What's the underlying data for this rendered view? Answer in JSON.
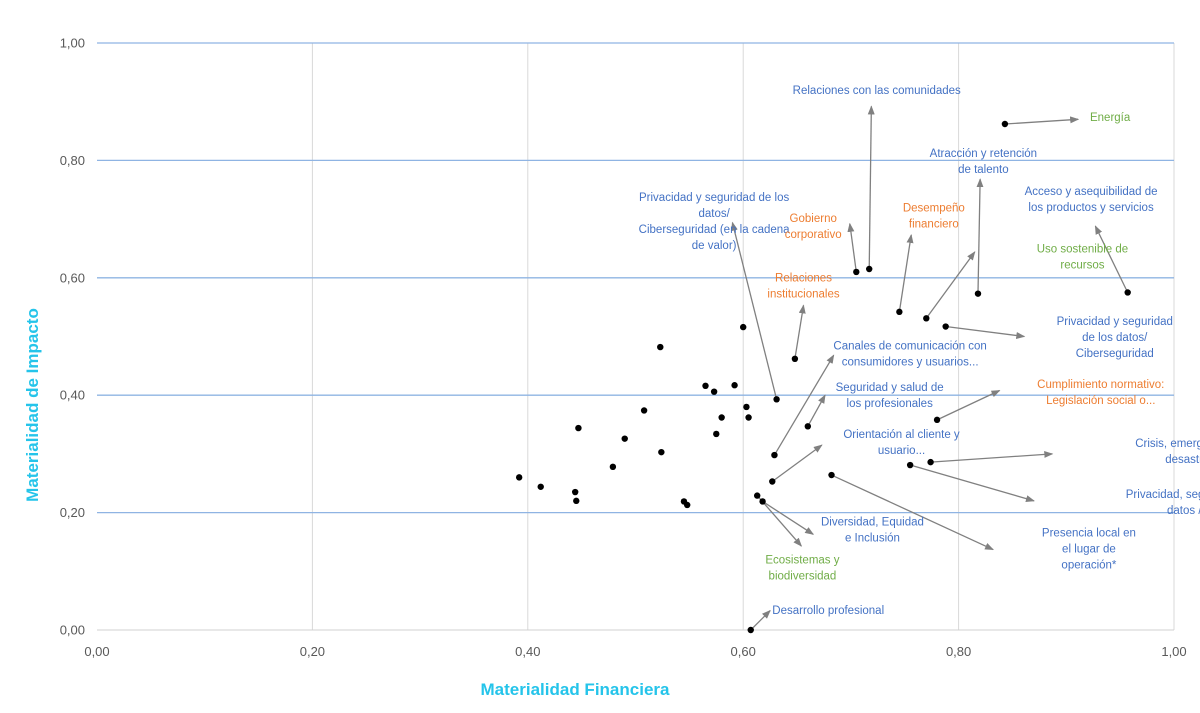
{
  "chart_data": {
    "type": "scatter",
    "title": "",
    "xlabel": "Materialidad Financiera",
    "ylabel": "Materialidad de Impacto",
    "xlim": [
      0,
      1
    ],
    "ylim": [
      0,
      1
    ],
    "x_ticks": [
      "0,00",
      "0,20",
      "0,40",
      "0,60",
      "0,80",
      "1,00"
    ],
    "y_ticks": [
      "0,00",
      "0,20",
      "0,40",
      "0,60",
      "0,80",
      "1,00"
    ],
    "grid": "horizontal lines blue, vertical lines grey",
    "colors": {
      "point": "#000000",
      "h_grid": "#8fb4e3",
      "v_grid": "#d9d9d9",
      "axis_title": "#25c4ea",
      "arrow": "#808080",
      "label_blue": "#4472c4",
      "label_orange": "#ed7d31",
      "label_green": "#70ad47"
    },
    "points": [
      {
        "x": 0.392,
        "y": 0.26
      },
      {
        "x": 0.412,
        "y": 0.244
      },
      {
        "x": 0.444,
        "y": 0.235
      },
      {
        "x": 0.445,
        "y": 0.22
      },
      {
        "x": 0.447,
        "y": 0.344
      },
      {
        "x": 0.479,
        "y": 0.278
      },
      {
        "x": 0.49,
        "y": 0.326
      },
      {
        "x": 0.508,
        "y": 0.374
      },
      {
        "x": 0.523,
        "y": 0.482
      },
      {
        "x": 0.524,
        "y": 0.303
      },
      {
        "x": 0.545,
        "y": 0.219
      },
      {
        "x": 0.548,
        "y": 0.213
      },
      {
        "x": 0.565,
        "y": 0.416
      },
      {
        "x": 0.573,
        "y": 0.406
      },
      {
        "x": 0.575,
        "y": 0.334
      },
      {
        "x": 0.58,
        "y": 0.362
      },
      {
        "x": 0.592,
        "y": 0.417
      },
      {
        "x": 0.6,
        "y": 0.516
      },
      {
        "x": 0.603,
        "y": 0.38
      },
      {
        "x": 0.605,
        "y": 0.362
      },
      {
        "x": 0.607,
        "y": 0.0
      },
      {
        "x": 0.613,
        "y": 0.229
      },
      {
        "x": 0.618,
        "y": 0.219
      },
      {
        "x": 0.627,
        "y": 0.253
      },
      {
        "x": 0.629,
        "y": 0.298
      },
      {
        "x": 0.631,
        "y": 0.393
      },
      {
        "x": 0.648,
        "y": 0.462
      },
      {
        "x": 0.66,
        "y": 0.347
      },
      {
        "x": 0.682,
        "y": 0.264
      },
      {
        "x": 0.705,
        "y": 0.61
      },
      {
        "x": 0.717,
        "y": 0.615
      },
      {
        "x": 0.745,
        "y": 0.542
      },
      {
        "x": 0.755,
        "y": 0.281
      },
      {
        "x": 0.77,
        "y": 0.531
      },
      {
        "x": 0.774,
        "y": 0.286
      },
      {
        "x": 0.78,
        "y": 0.358
      },
      {
        "x": 0.788,
        "y": 0.517
      },
      {
        "x": 0.818,
        "y": 0.573
      },
      {
        "x": 0.843,
        "y": 0.862
      },
      {
        "x": 0.957,
        "y": 0.575
      }
    ],
    "annotations": [
      {
        "lines": [
          "Relaciones con las comunidades"
        ],
        "color": "blue",
        "anchor": "middle",
        "tx": 0.724,
        "ty": 0.913,
        "from": [
          0.717,
          0.615
        ],
        "to": [
          0.719,
          0.892
        ]
      },
      {
        "lines": [
          "Energía"
        ],
        "color": "green",
        "anchor": "start",
        "tx": 0.922,
        "ty": 0.867,
        "from": [
          0.843,
          0.862
        ],
        "to": [
          0.911,
          0.87
        ]
      },
      {
        "lines": [
          "Atracción y retención",
          "de talento"
        ],
        "color": "blue",
        "anchor": "middle",
        "tx": 0.823,
        "ty": 0.806,
        "from": [
          0.818,
          0.573
        ],
        "to": [
          0.82,
          0.768
        ]
      },
      {
        "lines": [
          "Acceso y asequibilidad de",
          "los productos y servicios"
        ],
        "color": "blue",
        "anchor": "middle",
        "tx": 0.923,
        "ty": 0.741,
        "from": [
          0.957,
          0.575
        ],
        "to": [
          0.927,
          0.688
        ]
      },
      {
        "lines": [
          "Privacidad y seguridad de los",
          "datos/",
          "Ciberseguridad (en la cadena",
          "de valor)"
        ],
        "color": "blue",
        "anchor": "middle",
        "tx": 0.573,
        "ty": 0.731,
        "from": [
          0.631,
          0.393
        ],
        "to": [
          0.59,
          0.694
        ]
      },
      {
        "lines": [
          "Gobierno",
          "corporativo"
        ],
        "color": "orange",
        "anchor": "middle",
        "tx": 0.665,
        "ty": 0.695,
        "from": [
          0.705,
          0.61
        ],
        "to": [
          0.699,
          0.692
        ]
      },
      {
        "lines": [
          "Desempeño",
          "financiero"
        ],
        "color": "orange",
        "anchor": "middle",
        "tx": 0.777,
        "ty": 0.713,
        "from": [
          0.745,
          0.542
        ],
        "to": [
          0.756,
          0.673
        ]
      },
      {
        "lines": [
          "Uso sostenible de",
          "recursos"
        ],
        "color": "green",
        "anchor": "middle",
        "tx": 0.915,
        "ty": 0.643,
        "from": [
          0.77,
          0.531
        ],
        "to": [
          0.815,
          0.644
        ]
      },
      {
        "lines": [
          "Relaciones",
          "institucionales"
        ],
        "color": "orange",
        "anchor": "middle",
        "tx": 0.656,
        "ty": 0.594,
        "from": [
          0.648,
          0.462
        ],
        "to": [
          0.656,
          0.553
        ]
      },
      {
        "lines": [
          "Privacidad y seguridad",
          "de los datos/",
          "Ciberseguridad"
        ],
        "color": "blue",
        "anchor": "middle",
        "tx": 0.945,
        "ty": 0.52,
        "from": [
          0.788,
          0.517
        ],
        "to": [
          0.861,
          0.5
        ]
      },
      {
        "lines": [
          "Canales de comunicación con",
          "consumidores y usuarios..."
        ],
        "color": "blue",
        "anchor": "middle",
        "tx": 0.755,
        "ty": 0.478,
        "from": [
          0.629,
          0.298
        ],
        "to": [
          0.684,
          0.468
        ]
      },
      {
        "lines": [
          "Cumplimiento normativo:",
          "Legislación social o..."
        ],
        "color": "orange",
        "anchor": "middle",
        "tx": 0.932,
        "ty": 0.412,
        "from": [
          0.78,
          0.358
        ],
        "to": [
          0.838,
          0.408
        ]
      },
      {
        "lines": [
          "Seguridad y salud de",
          "los profesionales"
        ],
        "color": "blue",
        "anchor": "middle",
        "tx": 0.736,
        "ty": 0.407,
        "from": [
          0.66,
          0.347
        ],
        "to": [
          0.676,
          0.4
        ]
      },
      {
        "lines": [
          "Orientación al cliente y",
          "usuario..."
        ],
        "color": "blue",
        "anchor": "middle",
        "tx": 0.747,
        "ty": 0.327,
        "from": [
          0.627,
          0.253
        ],
        "to": [
          0.673,
          0.315
        ]
      },
      {
        "lines": [
          "Crisis, emergencias y",
          "desastres"
        ],
        "color": "blue",
        "anchor": "middle",
        "tx": 1.015,
        "ty": 0.312,
        "from": [
          0.774,
          0.286
        ],
        "to": [
          0.887,
          0.3
        ]
      },
      {
        "lines": [
          "Privacidad, seguridad de",
          "datos /..."
        ],
        "color": "blue",
        "anchor": "middle",
        "tx": 1.014,
        "ty": 0.225,
        "from": [
          0.755,
          0.281
        ],
        "to": [
          0.87,
          0.22
        ]
      },
      {
        "lines": [
          "Diversidad, Equidad",
          "e Inclusión"
        ],
        "color": "blue",
        "anchor": "middle",
        "tx": 0.72,
        "ty": 0.178,
        "from": [
          0.618,
          0.219
        ],
        "to": [
          0.665,
          0.163
        ]
      },
      {
        "lines": [
          "Presencia local en",
          "el lugar de",
          "operación*"
        ],
        "color": "blue",
        "anchor": "middle",
        "tx": 0.921,
        "ty": 0.159,
        "from": [
          0.682,
          0.264
        ],
        "to": [
          0.832,
          0.137
        ]
      },
      {
        "lines": [
          "Ecosistemas y",
          "biodiversidad"
        ],
        "color": "green",
        "anchor": "middle",
        "tx": 0.655,
        "ty": 0.113,
        "from": [
          0.613,
          0.229
        ],
        "to": [
          0.654,
          0.143
        ]
      },
      {
        "lines": [
          "Desarrollo profesional"
        ],
        "color": "blue",
        "anchor": "start",
        "tx": 0.627,
        "ty": 0.027,
        "from": [
          0.607,
          0.0
        ],
        "to": [
          0.625,
          0.033
        ]
      }
    ]
  }
}
